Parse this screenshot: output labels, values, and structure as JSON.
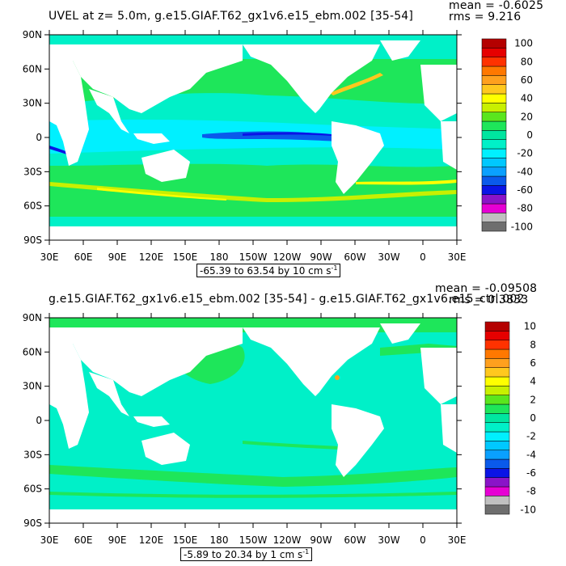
{
  "top": {
    "title": "UVEL at z=   5.0m, g.e15.GIAF.T62_gx1v6.e15_ebm.002 [35-54]",
    "mean": "mean = -0.6025",
    "rms": "rms = 9.216",
    "range_text": "-65.39 to 63.54 by 10 cm s",
    "range_unit_exp": "-1",
    "colorbar_labels": [
      "100",
      "80",
      "60",
      "40",
      "20",
      "0",
      "-20",
      "-40",
      "-60",
      "-80",
      "-100"
    ]
  },
  "bottom": {
    "title": "g.e15.GIAF.T62_gx1v6.e15_ebm.002 [35-54] - g.e15.GIAF.T62_gx1v6.e15_ctrl.002",
    "mean": "mean = -0.09508",
    "rms": "rms = 0.3833",
    "range_text": "-5.89 to 20.34 by 1 cm s",
    "range_unit_exp": "-1",
    "colorbar_labels": [
      "10",
      "8",
      "6",
      "4",
      "2",
      "0",
      "-2",
      "-4",
      "-6",
      "-8",
      "-10"
    ]
  },
  "axes": {
    "lat_ticks": [
      "90N",
      "60N",
      "30N",
      "0",
      "30S",
      "60S",
      "90S"
    ],
    "lon_ticks": [
      "30E",
      "60E",
      "90E",
      "120E",
      "150E",
      "180",
      "150W",
      "120W",
      "90W",
      "60W",
      "30W",
      "0",
      "30E"
    ]
  },
  "colorbar_colors": [
    "#6e6e6e",
    "#c0c0c0",
    "#e600d4",
    "#8a14c8",
    "#0a14e6",
    "#0a5aeb",
    "#0aa0ff",
    "#00c8ff",
    "#00f0ff",
    "#00f0c8",
    "#00e6a0",
    "#1ee65a",
    "#5ae61e",
    "#c8f000",
    "#ffff00",
    "#ffc81e",
    "#ffa01e",
    "#ff7800",
    "#ff3200",
    "#e60000",
    "#b40000"
  ],
  "ocean_colors": {
    "base_top": "#1ee65a",
    "cyan": "#00f0c8",
    "base_bottom": "#00f0c8",
    "green": "#1ee65a"
  }
}
